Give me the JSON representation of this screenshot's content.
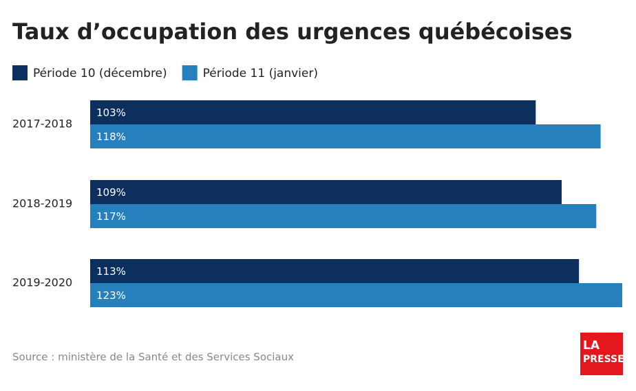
{
  "chart_data": {
    "type": "hbar",
    "title": "Taux d’occupation des urgences québécoises",
    "categories": [
      "2017-2018",
      "2018-2019",
      "2019-2020"
    ],
    "series": [
      {
        "name": "Période 10 (décembre)",
        "color": "#0c2f5e",
        "values": [
          103,
          109,
          113
        ],
        "value_labels": [
          "103%",
          "109%",
          "113%"
        ]
      },
      {
        "name": "Période 11 (janvier)",
        "color": "#2680bd",
        "values": [
          118,
          117,
          123
        ],
        "value_labels": [
          "118%",
          "117%",
          "123%"
        ]
      }
    ],
    "legend": "top-left",
    "source": "Source : ministère de la Santé et des Services Sociaux",
    "logo": [
      "LA",
      "PRESSE"
    ]
  }
}
